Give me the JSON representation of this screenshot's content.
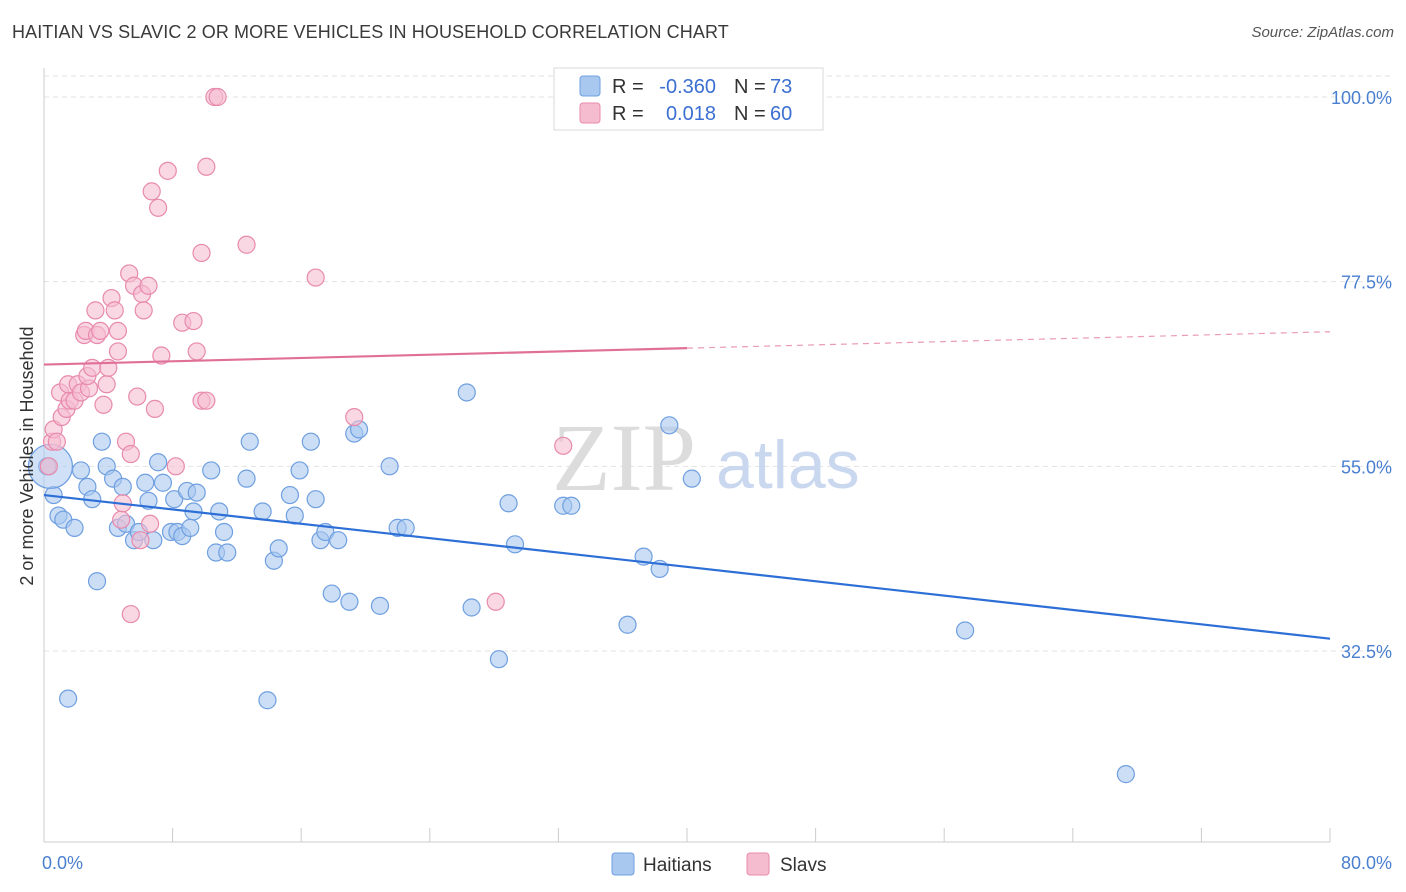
{
  "title": "HAITIAN VS SLAVIC 2 OR MORE VEHICLES IN HOUSEHOLD CORRELATION CHART",
  "source": "Source: ZipAtlas.com",
  "chart_data": {
    "type": "scatter",
    "title": "HAITIAN VS SLAVIC 2 OR MORE VEHICLES IN HOUSEHOLD CORRELATION CHART",
    "xlabel": "",
    "ylabel": "2 or more Vehicles in Household",
    "xlim": [
      0,
      80
    ],
    "ylim": [
      12,
      102
    ],
    "x_tick_labels": [
      "0.0%",
      "80.0%"
    ],
    "y_ticks": [
      32.5,
      55.0,
      77.5,
      100.0
    ],
    "y_tick_labels": [
      "32.5%",
      "55.0%",
      "77.5%",
      "100.0%"
    ],
    "watermark": {
      "zip": "ZIP",
      "atlas": "atlas"
    },
    "legend": {
      "r_label": "R =",
      "n_label": "N =",
      "entries": [
        {
          "name": "Haitians",
          "r": "-0.360",
          "n": "73"
        },
        {
          "name": "Slavs",
          "r": "0.018",
          "n": "60"
        }
      ]
    },
    "colors": {
      "haitians_fill": "#a9c8f0",
      "haitians_stroke": "#6f9fe0",
      "haitians_line": "#2d6fd6",
      "slavs_fill": "#f5bcd0",
      "slavs_stroke": "#e88aac",
      "slavs_line": "#e07098",
      "grid": "#e2e2e2"
    },
    "series": [
      {
        "name": "Haitians",
        "trend": {
          "x0": 0,
          "y0": 51.5,
          "x1": 80,
          "y1": 34.0
        },
        "points": [
          [
            0.2,
            55.0
          ],
          [
            0.6,
            51.5
          ],
          [
            0.9,
            49.0
          ],
          [
            1.2,
            48.5
          ],
          [
            1.9,
            47.5
          ],
          [
            1.5,
            26.7
          ],
          [
            2.3,
            54.5
          ],
          [
            2.7,
            52.5
          ],
          [
            3.0,
            51.0
          ],
          [
            3.3,
            41.0
          ],
          [
            3.6,
            58.0
          ],
          [
            3.9,
            55.0
          ],
          [
            4.3,
            53.5
          ],
          [
            4.6,
            47.5
          ],
          [
            4.9,
            52.5
          ],
          [
            5.1,
            48.0
          ],
          [
            5.6,
            46.0
          ],
          [
            5.9,
            47.0
          ],
          [
            6.3,
            53.0
          ],
          [
            6.5,
            50.8
          ],
          [
            6.8,
            46.0
          ],
          [
            7.1,
            55.5
          ],
          [
            7.4,
            53.0
          ],
          [
            7.9,
            47.0
          ],
          [
            8.1,
            51.0
          ],
          [
            8.3,
            47.0
          ],
          [
            8.9,
            52.0
          ],
          [
            8.6,
            46.5
          ],
          [
            9.3,
            49.5
          ],
          [
            9.5,
            51.8
          ],
          [
            9.1,
            47.5
          ],
          [
            10.4,
            54.5
          ],
          [
            10.7,
            44.5
          ],
          [
            11.2,
            47.0
          ],
          [
            10.9,
            49.5
          ],
          [
            11.4,
            44.5
          ],
          [
            12.6,
            53.5
          ],
          [
            12.8,
            58.0
          ],
          [
            13.6,
            49.5
          ],
          [
            13.9,
            26.5
          ],
          [
            14.3,
            43.5
          ],
          [
            14.6,
            45.0
          ],
          [
            15.3,
            51.5
          ],
          [
            15.6,
            49.0
          ],
          [
            15.9,
            54.5
          ],
          [
            16.6,
            58.0
          ],
          [
            16.9,
            51.0
          ],
          [
            17.2,
            46.0
          ],
          [
            17.5,
            47.0
          ],
          [
            17.9,
            39.5
          ],
          [
            18.3,
            46.0
          ],
          [
            19.0,
            38.5
          ],
          [
            19.3,
            59.0
          ],
          [
            19.6,
            59.5
          ],
          [
            20.9,
            38.0
          ],
          [
            21.5,
            55.0
          ],
          [
            22.0,
            47.5
          ],
          [
            22.5,
            47.5
          ],
          [
            26.3,
            64.0
          ],
          [
            26.6,
            37.8
          ],
          [
            28.3,
            31.5
          ],
          [
            28.9,
            50.5
          ],
          [
            29.3,
            45.5
          ],
          [
            32.3,
            50.2
          ],
          [
            32.8,
            50.2
          ],
          [
            36.3,
            35.7
          ],
          [
            37.3,
            44.0
          ],
          [
            38.3,
            42.5
          ],
          [
            38.9,
            60.0
          ],
          [
            40.3,
            53.5
          ],
          [
            57.3,
            35.0
          ],
          [
            67.3,
            17.5
          ],
          [
            0.4,
            55.0
          ]
        ]
      },
      {
        "name": "Slavs",
        "trend": {
          "x0": 0,
          "y0": 67.4,
          "x1": 40,
          "y1": 69.4,
          "dash_x1": 80,
          "dash_y1": 71.4
        },
        "points": [
          [
            0.3,
            55.0
          ],
          [
            0.5,
            58.0
          ],
          [
            0.6,
            59.5
          ],
          [
            0.8,
            58.0
          ],
          [
            1.1,
            61.0
          ],
          [
            1.0,
            64.0
          ],
          [
            1.4,
            62.0
          ],
          [
            1.6,
            63.0
          ],
          [
            1.5,
            65.0
          ],
          [
            1.9,
            63.0
          ],
          [
            2.1,
            65.0
          ],
          [
            2.3,
            64.0
          ],
          [
            2.5,
            71.0
          ],
          [
            2.6,
            71.5
          ],
          [
            2.8,
            64.5
          ],
          [
            2.7,
            66.0
          ],
          [
            3.0,
            67.0
          ],
          [
            3.2,
            74.0
          ],
          [
            3.3,
            71.0
          ],
          [
            3.5,
            71.5
          ],
          [
            3.7,
            62.5
          ],
          [
            3.9,
            65.0
          ],
          [
            4.0,
            67.0
          ],
          [
            4.2,
            75.5
          ],
          [
            4.4,
            74.0
          ],
          [
            4.6,
            71.5
          ],
          [
            4.6,
            69.0
          ],
          [
            4.8,
            48.5
          ],
          [
            4.9,
            50.5
          ],
          [
            5.1,
            58.0
          ],
          [
            5.3,
            78.5
          ],
          [
            5.4,
            56.5
          ],
          [
            5.6,
            77.0
          ],
          [
            5.4,
            37.0
          ],
          [
            5.8,
            63.5
          ],
          [
            6.0,
            46.0
          ],
          [
            6.1,
            76.0
          ],
          [
            6.2,
            74.0
          ],
          [
            6.5,
            77.0
          ],
          [
            6.7,
            88.5
          ],
          [
            6.6,
            48.0
          ],
          [
            6.9,
            62.0
          ],
          [
            7.1,
            86.5
          ],
          [
            7.3,
            68.5
          ],
          [
            7.7,
            91.0
          ],
          [
            8.2,
            55.0
          ],
          [
            8.6,
            72.5
          ],
          [
            9.3,
            72.7
          ],
          [
            9.5,
            69.0
          ],
          [
            9.8,
            81.0
          ],
          [
            9.8,
            63.0
          ],
          [
            10.1,
            63.0
          ],
          [
            10.1,
            91.5
          ],
          [
            10.6,
            100.0
          ],
          [
            10.8,
            100.0
          ],
          [
            12.6,
            82.0
          ],
          [
            16.9,
            78.0
          ],
          [
            19.3,
            61.0
          ],
          [
            32.3,
            57.5
          ],
          [
            28.1,
            38.5
          ]
        ]
      }
    ]
  }
}
